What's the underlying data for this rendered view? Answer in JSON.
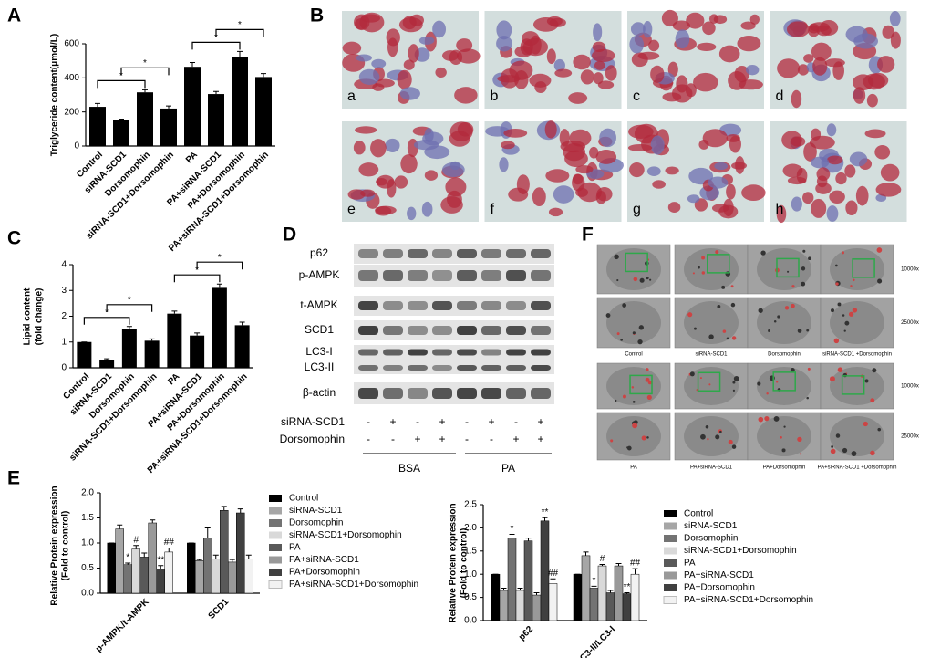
{
  "chart_data": [
    {
      "type": "bar",
      "panel": "A",
      "ylabel": [
        "Triglyceride content(μmol/L)"
      ],
      "categories": [
        "Control",
        "siRNA-SCD1",
        "Dorsomophin",
        "siRNA-SCD1+Dorsomophin",
        "PA",
        "PA+siRNA-SCD1",
        "PA+Dorsomophin",
        "PA+siRNA-SCD1+Dorsomophin"
      ],
      "values": [
        230,
        150,
        315,
        220,
        465,
        305,
        525,
        405
      ],
      "errors": [
        20,
        8,
        15,
        15,
        25,
        15,
        30,
        20
      ],
      "color": "#000000",
      "ylim": [
        0,
        600
      ],
      "yticks": [
        0,
        200,
        400,
        600
      ],
      "annotations": [
        {
          "text": "*",
          "between": [
            0,
            2
          ]
        },
        {
          "text": "*",
          "between": [
            1,
            3
          ]
        },
        {
          "text": "*",
          "between": [
            4,
            6
          ]
        },
        {
          "text": "*",
          "between": [
            5,
            7
          ]
        }
      ]
    },
    {
      "type": "bar",
      "panel": "C",
      "ylabel": [
        "Lipid content",
        "(fold change)"
      ],
      "categories": [
        "Control",
        "siRNA-SCD1",
        "Dorsomophin",
        "siRNA-SCD1+Dorsomophin",
        "PA",
        "PA+siRNA-SCD1",
        "PA+Dorsomophin",
        "PA+siRNA-SCD1+Dorsomophin"
      ],
      "values": [
        1.0,
        0.3,
        1.5,
        1.05,
        2.1,
        1.25,
        3.1,
        1.65
      ],
      "errors": [
        0,
        0.05,
        0.1,
        0.07,
        0.1,
        0.1,
        0.15,
        0.12
      ],
      "color": "#000000",
      "ylim": [
        0,
        4
      ],
      "yticks": [
        0,
        1,
        2,
        3,
        4
      ],
      "annotations": [
        {
          "text": "*",
          "between": [
            0,
            2
          ]
        },
        {
          "text": "*",
          "between": [
            1,
            3
          ]
        },
        {
          "text": "*",
          "between": [
            4,
            6
          ]
        },
        {
          "text": "*",
          "between": [
            5,
            7
          ]
        }
      ]
    },
    {
      "type": "grouped_bar",
      "panel": "E",
      "ylabel": [
        "Relative Protein expression",
        "(Fold to control)"
      ],
      "categories": [
        "p-AMPK/t-AMPK",
        "SCD1"
      ],
      "ylim": [
        0,
        2
      ],
      "yticks": [
        {
          "value": 0,
          "label": "0.0"
        },
        0.5,
        {
          "value": 1,
          "label": "1.0"
        },
        1.5,
        {
          "value": 2,
          "label": "2.0"
        }
      ],
      "series": [
        {
          "name": "Control",
          "color": "#000000",
          "values": [
            1.0,
            1.0
          ],
          "errors": [
            0,
            0
          ]
        },
        {
          "name": "siRNA-SCD1",
          "color": "#a6a6a6",
          "values": [
            1.28,
            0.65
          ],
          "errors": [
            0.08,
            0.02
          ]
        },
        {
          "name": "Dorsomophin",
          "color": "#737373",
          "values": [
            0.57,
            1.1
          ],
          "errors": [
            0.03,
            0.2
          ],
          "marks": [
            "*",
            null
          ]
        },
        {
          "name": "siRNA-SCD1+Dorsomophin",
          "color": "#d9d9d9",
          "values": [
            0.88,
            0.68
          ],
          "errors": [
            0.07,
            0.08
          ],
          "marks": [
            "#",
            null
          ]
        },
        {
          "name": "PA",
          "color": "#595959",
          "values": [
            0.72,
            1.65
          ],
          "errors": [
            0.08,
            0.08
          ]
        },
        {
          "name": "PA+siRNA-SCD1",
          "color": "#999999",
          "values": [
            1.4,
            0.62
          ],
          "errors": [
            0.06,
            0.05
          ]
        },
        {
          "name": "PA+Dorsomophin",
          "color": "#404040",
          "values": [
            0.48,
            1.6
          ],
          "errors": [
            0.07,
            0.08
          ],
          "marks": [
            "**",
            null
          ]
        },
        {
          "name": "PA+siRNA-SCD1+Dorsomophin",
          "color": "#f2f2f2",
          "values": [
            0.82,
            0.68
          ],
          "errors": [
            0.08,
            0.08
          ],
          "marks": [
            "##",
            null
          ]
        }
      ]
    },
    {
      "type": "grouped_bar",
      "ylabel": [
        "Relative Protein expression",
        "(Fold to control)"
      ],
      "categories": [
        "p62",
        "LC3-II/LC3-I"
      ],
      "ylim": [
        0,
        2.5
      ],
      "yticks": [
        {
          "value": 0,
          "label": "0.0"
        },
        0.5,
        {
          "value": 1,
          "label": "1.0"
        },
        1.5,
        {
          "value": 2,
          "label": "2.0"
        },
        2.5
      ],
      "series": [
        {
          "name": "Control",
          "color": "#000000",
          "values": [
            1.0,
            1.0
          ],
          "errors": [
            0,
            0
          ]
        },
        {
          "name": "siRNA-SCD1",
          "color": "#a6a6a6",
          "values": [
            0.65,
            1.4
          ],
          "errors": [
            0.05,
            0.08
          ]
        },
        {
          "name": "Dorsomophin",
          "color": "#737373",
          "values": [
            1.78,
            0.7
          ],
          "errors": [
            0.08,
            0.04
          ],
          "marks": [
            "*",
            "*"
          ]
        },
        {
          "name": "siRNA-SCD1+Dorsomophin",
          "color": "#d9d9d9",
          "values": [
            0.65,
            1.18
          ],
          "errors": [
            0.05,
            0.03
          ],
          "marks": [
            null,
            "#"
          ]
        },
        {
          "name": "PA",
          "color": "#595959",
          "values": [
            1.72,
            0.6
          ],
          "errors": [
            0.06,
            0.05
          ]
        },
        {
          "name": "PA+siRNA-SCD1",
          "color": "#999999",
          "values": [
            0.55,
            1.18
          ],
          "errors": [
            0.05,
            0.05
          ]
        },
        {
          "name": "PA+Dorsomophin",
          "color": "#404040",
          "values": [
            2.15,
            0.58
          ],
          "errors": [
            0.07,
            0.02
          ],
          "marks": [
            "**",
            "**"
          ]
        },
        {
          "name": "PA+siRNA-SCD1+Dorsomophin",
          "color": "#f2f2f2",
          "values": [
            0.8,
            1.0
          ],
          "errors": [
            0.1,
            0.12
          ],
          "marks": [
            "##",
            "##"
          ]
        }
      ]
    }
  ],
  "panel_b": {
    "label": "B",
    "images": [
      "a",
      "b",
      "c",
      "d",
      "e",
      "f",
      "g",
      "h"
    ]
  },
  "panel_d": {
    "label": "D",
    "proteins": [
      "p62",
      "p-AMPK",
      "t-AMPK",
      "SCD1",
      "LC3-I",
      "LC3-II",
      "β-actin"
    ],
    "treatments": [
      {
        "name": "siRNA-SCD1",
        "signs": [
          "-",
          "+",
          "-",
          "+",
          "-",
          "+",
          "-",
          "+"
        ]
      },
      {
        "name": "Dorsomophin",
        "signs": [
          "-",
          "-",
          "+",
          "+",
          "-",
          "-",
          "+",
          "+"
        ]
      }
    ],
    "groups": [
      "BSA",
      "PA"
    ]
  },
  "panel_f": {
    "label": "F",
    "magnifications": [
      "10000x",
      "25000x",
      "10000x",
      "25000x"
    ],
    "captions": [
      "Control",
      "siRNA-SCD1",
      "Dorsomophin",
      "siRNA-SCD1 +Dorsomophin",
      "PA",
      "PA+siRNA-SCD1",
      "PA+Dorsomophin",
      "PA+siRNA-SCD1 +Dorsomophin"
    ]
  }
}
